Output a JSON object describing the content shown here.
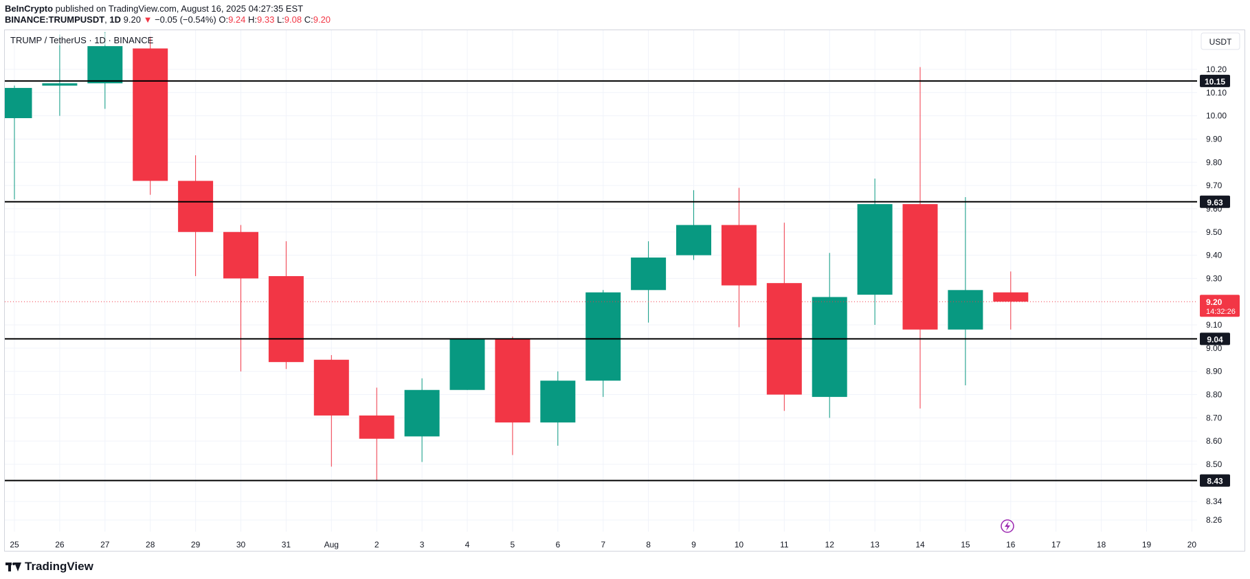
{
  "header": {
    "publisher": "BeInCrypto",
    "published_text": " published on TradingView.com, August 16, 2025 04:27:35 EST",
    "symbol_full": "BINANCE:TRUMPUSDT",
    "interval": "1D",
    "price": "9.20",
    "change_arrow": "▼",
    "change": "−0.05 (−0.54%)",
    "o_label": "O:",
    "o_value": "9.24",
    "h_label": "H:",
    "h_value": "9.33",
    "l_label": "L:",
    "l_value": "9.08",
    "c_label": "C:",
    "c_value": "9.20"
  },
  "chart_title": "TRUMP / TetherUS · 1D · BINANCE",
  "currency_label": "USDT",
  "footer": {
    "brand": "TradingView"
  },
  "colors": {
    "up": "#089981",
    "down": "#f23645",
    "grid": "#f0f3fa",
    "level_line": "#000000",
    "text": "#131722",
    "bolt": "#9c27b0"
  },
  "chart_data": {
    "type": "candlestick",
    "x_tick_labels": [
      "25",
      "26",
      "27",
      "28",
      "29",
      "30",
      "31",
      "Aug",
      "2",
      "3",
      "4",
      "5",
      "6",
      "7",
      "8",
      "9",
      "10",
      "11",
      "12",
      "13",
      "14",
      "15",
      "16",
      "17",
      "18",
      "19",
      "20"
    ],
    "y_tick_labels": [
      "10.20",
      "10.10",
      "10.00",
      "9.90",
      "9.80",
      "9.70",
      "9.60",
      "9.50",
      "9.40",
      "9.30",
      "9.10",
      "9.00",
      "8.90",
      "8.80",
      "8.70",
      "8.60",
      "8.50",
      "8.34",
      "8.26"
    ],
    "y_ticks": [
      10.2,
      10.1,
      10.0,
      9.9,
      9.8,
      9.7,
      9.6,
      9.5,
      9.4,
      9.3,
      9.1,
      9.0,
      8.9,
      8.8,
      8.7,
      8.6,
      8.5,
      8.34,
      8.26
    ],
    "ylim": [
      8.225,
      10.265
    ],
    "candles": [
      {
        "date": "Jul 25",
        "open": 9.99,
        "high": 10.13,
        "low": 9.64,
        "close": 10.12
      },
      {
        "date": "Jul 26",
        "open": 10.13,
        "high": 10.35,
        "low": 10.0,
        "close": 10.14
      },
      {
        "date": "Jul 27",
        "open": 10.14,
        "high": 10.36,
        "low": 10.03,
        "close": 10.3
      },
      {
        "date": "Jul 28",
        "open": 10.29,
        "high": 10.34,
        "low": 9.66,
        "close": 9.72
      },
      {
        "date": "Jul 29",
        "open": 9.72,
        "high": 9.83,
        "low": 9.31,
        "close": 9.5
      },
      {
        "date": "Jul 30",
        "open": 9.5,
        "high": 9.53,
        "low": 8.9,
        "close": 9.3
      },
      {
        "date": "Jul 31",
        "open": 9.31,
        "high": 9.46,
        "low": 8.91,
        "close": 8.94
      },
      {
        "date": "Aug 1",
        "open": 8.95,
        "high": 8.97,
        "low": 8.49,
        "close": 8.71
      },
      {
        "date": "Aug 2",
        "open": 8.71,
        "high": 8.83,
        "low": 8.43,
        "close": 8.61
      },
      {
        "date": "Aug 3",
        "open": 8.62,
        "high": 8.87,
        "low": 8.51,
        "close": 8.82
      },
      {
        "date": "Aug 4",
        "open": 8.82,
        "high": 9.04,
        "low": 8.82,
        "close": 9.04
      },
      {
        "date": "Aug 5",
        "open": 9.04,
        "high": 9.05,
        "low": 8.54,
        "close": 8.68
      },
      {
        "date": "Aug 6",
        "open": 8.68,
        "high": 8.9,
        "low": 8.58,
        "close": 8.86
      },
      {
        "date": "Aug 7",
        "open": 8.86,
        "high": 9.25,
        "low": 8.79,
        "close": 9.24
      },
      {
        "date": "Aug 8",
        "open": 9.25,
        "high": 9.46,
        "low": 9.11,
        "close": 9.39
      },
      {
        "date": "Aug 9",
        "open": 9.4,
        "high": 9.68,
        "low": 9.38,
        "close": 9.53
      },
      {
        "date": "Aug 10",
        "open": 9.53,
        "high": 9.69,
        "low": 9.09,
        "close": 9.27
      },
      {
        "date": "Aug 11",
        "open": 9.28,
        "high": 9.54,
        "low": 8.73,
        "close": 8.8
      },
      {
        "date": "Aug 12",
        "open": 8.79,
        "high": 9.41,
        "low": 8.7,
        "close": 9.22
      },
      {
        "date": "Aug 13",
        "open": 9.23,
        "high": 9.73,
        "low": 9.1,
        "close": 9.62
      },
      {
        "date": "Aug 14",
        "open": 9.62,
        "high": 10.21,
        "low": 8.74,
        "close": 9.08
      },
      {
        "date": "Aug 15",
        "open": 9.08,
        "high": 9.65,
        "low": 8.84,
        "close": 9.25
      },
      {
        "date": "Aug 16",
        "open": 9.24,
        "high": 9.33,
        "low": 9.08,
        "close": 9.2
      }
    ],
    "levels": [
      10.15,
      9.63,
      9.04,
      8.43
    ],
    "level_labels": [
      "10.15",
      "9.63",
      "9.04",
      "8.43"
    ],
    "current_price": 9.2,
    "current_price_label": "9.20",
    "countdown": "14:32:26",
    "grid": true
  }
}
